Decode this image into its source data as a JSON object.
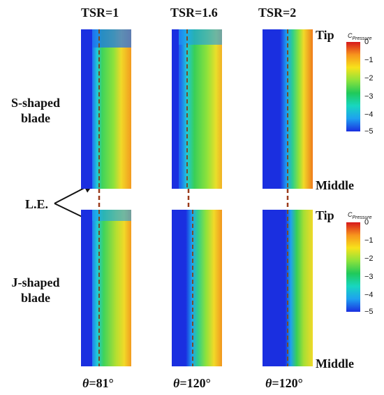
{
  "columns": [
    {
      "tsr": "TSR=1",
      "theta_symbol": "θ",
      "theta_value": "=81°"
    },
    {
      "tsr": "TSR=1.6",
      "theta_symbol": "θ",
      "theta_value": "=120°"
    },
    {
      "tsr": "TSR=2",
      "theta_symbol": "θ",
      "theta_value": "=120°"
    }
  ],
  "rows": [
    {
      "label_line1": "S-shaped",
      "label_line2": "blade",
      "top_label": "Tip",
      "bottom_label": "Middle"
    },
    {
      "label_line1": "J-shaped",
      "label_line2": "blade",
      "top_label": "Tip",
      "bottom_label": "Middle"
    }
  ],
  "leading_edge_label": "L.E.",
  "colorbar": {
    "title_main": "C",
    "title_sub": "Pressure",
    "ticks": [
      "0",
      "−1",
      "−2",
      "−3",
      "−4",
      "−5"
    ],
    "colors": [
      "#d7191c",
      "#f7941d",
      "#f7e21b",
      "#8ee23b",
      "#20c95a",
      "#18d6c0",
      "#1ea0f0",
      "#1a2fe0"
    ]
  }
}
